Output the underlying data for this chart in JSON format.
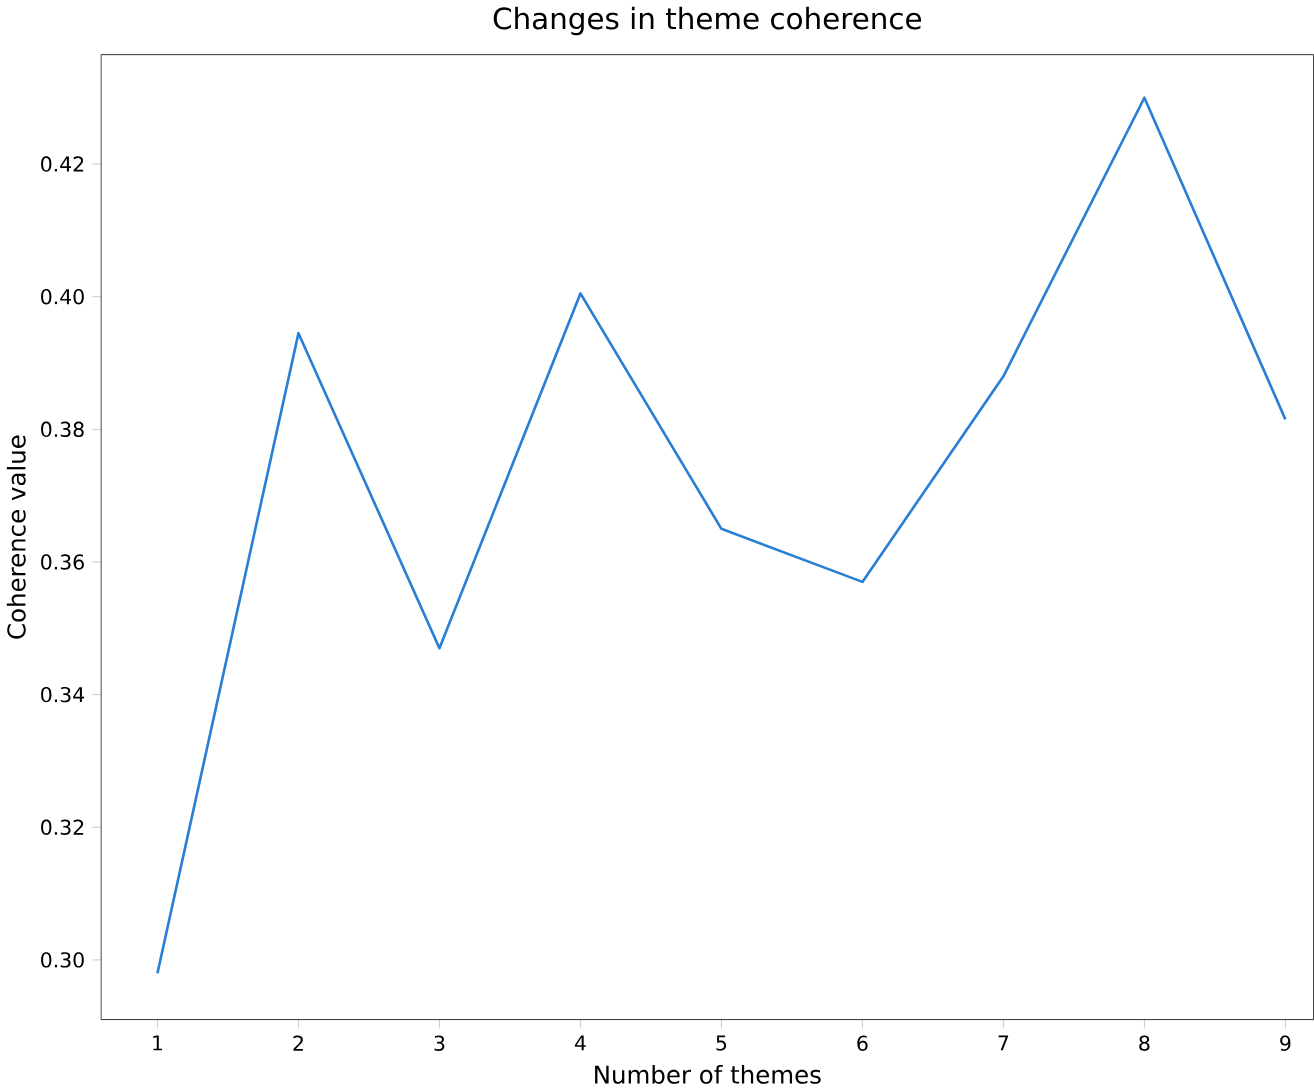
{
  "chart_data": {
    "type": "line",
    "title": "Changes in theme coherence",
    "xlabel": "Number of themes",
    "ylabel": "Coherence value",
    "x": [
      1,
      2,
      3,
      4,
      5,
      6,
      7,
      8,
      9
    ],
    "series": [
      {
        "color": "#2a7fd4",
        "values": [
          0.298,
          0.3945,
          0.347,
          0.4005,
          0.365,
          0.357,
          0.388,
          0.43,
          0.3815
        ]
      }
    ],
    "xlim": [
      0.6,
      9.2
    ],
    "ylim": [
      0.291,
      0.4365
    ],
    "xticks": [
      1,
      2,
      3,
      4,
      5,
      6,
      7,
      8,
      9
    ],
    "yticks": [
      {
        "value": 0.3,
        "label": "0.30"
      },
      {
        "value": 0.32,
        "label": "0.32"
      },
      {
        "value": 0.34,
        "label": "0.34"
      },
      {
        "value": 0.36,
        "label": "0.36"
      },
      {
        "value": 0.38,
        "label": "0.38"
      },
      {
        "value": 0.4,
        "label": "0.40"
      },
      {
        "value": 0.42,
        "label": "0.42"
      }
    ],
    "marker": "none",
    "line_style": "solid"
  }
}
